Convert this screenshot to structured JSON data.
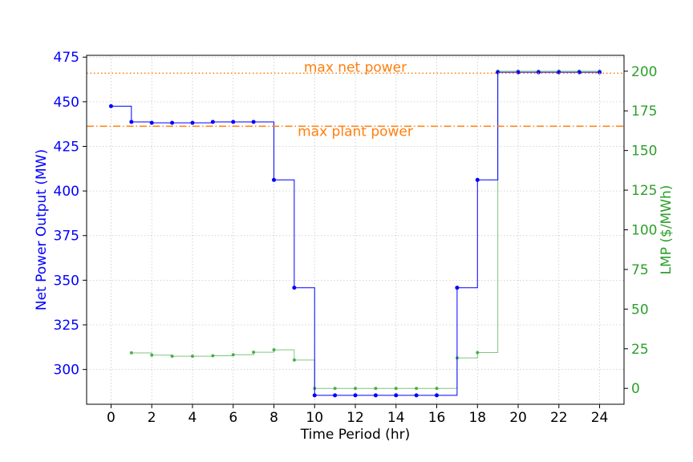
{
  "chart_data": {
    "type": "line",
    "xlabel": "Time Period (hr)",
    "ylabel_left": "Net Power Output (MW)",
    "ylabel_right": "LMP ($/MWh)",
    "xlim": [
      -1.2,
      25.2
    ],
    "ylim_left": [
      280.5,
      476
    ],
    "ylim_right": [
      -10,
      210
    ],
    "x_ticks": [
      0,
      2,
      4,
      6,
      8,
      10,
      12,
      14,
      16,
      18,
      20,
      22,
      24
    ],
    "y_ticks_left": [
      300,
      325,
      350,
      375,
      400,
      425,
      450,
      475
    ],
    "y_ticks_right": [
      0,
      25,
      50,
      75,
      100,
      125,
      150,
      175,
      200
    ],
    "grid": true,
    "colors": {
      "power": "#0000ff",
      "lmp": "#2ca02c",
      "reference": "#ff7f0e"
    },
    "series": [
      {
        "axis": "left",
        "style": "steps-post-markers",
        "x": [
          0,
          1,
          2,
          3,
          4,
          5,
          6,
          7,
          8,
          9,
          10,
          11,
          12,
          13,
          14,
          15,
          16,
          17,
          18,
          19,
          20,
          21,
          22,
          23,
          24
        ],
        "values": [
          447.5,
          438.7,
          438.2,
          438.2,
          438.2,
          438.7,
          438.7,
          438.7,
          406.2,
          345.8,
          285.5,
          285.5,
          285.5,
          285.5,
          285.5,
          285.5,
          285.5,
          345.8,
          406.2,
          466.5,
          466.5,
          466.5,
          466.5,
          466.5,
          466.5
        ]
      },
      {
        "axis": "right",
        "style": "steps-post-markers",
        "x": [
          1,
          2,
          3,
          4,
          5,
          6,
          7,
          8,
          9,
          10,
          11,
          12,
          13,
          14,
          15,
          16,
          17,
          18,
          19,
          20,
          21,
          22,
          23,
          24
        ],
        "values": [
          22.4,
          21.0,
          20.3,
          20.3,
          20.6,
          21.2,
          22.8,
          24.3,
          17.9,
          0,
          0,
          0,
          0,
          0,
          0,
          0,
          19.2,
          22.6,
          200,
          200,
          200,
          200,
          200,
          200
        ]
      }
    ],
    "reference_lines": [
      {
        "label": "max net power",
        "value": 466,
        "axis": "left",
        "style": "dotted"
      },
      {
        "label": "max plant power",
        "value": 436.3,
        "axis": "left",
        "style": "dashdot"
      }
    ]
  }
}
